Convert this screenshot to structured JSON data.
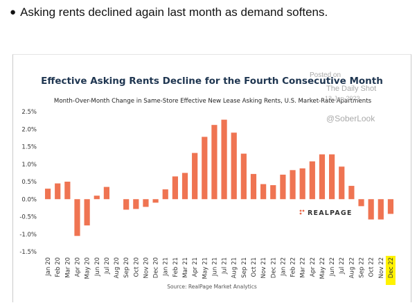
{
  "bullet": {
    "text": "Asking rents declined again last month as demand softens."
  },
  "watermarks": {
    "posted_on": "Posted on",
    "daily_shot": "The Daily Shot",
    "date": "13-Jan-2023",
    "handle": "@SoberLook"
  },
  "brand": {
    "name": "REALPAGE",
    "dots_color": "#e8684a"
  },
  "colors": {
    "bar": "#ef7452",
    "title": "#1e3550",
    "highlight": "#fff200"
  },
  "chart_data": {
    "type": "bar",
    "title": "Effective Asking Rents Decline for the Fourth Consecutive Month",
    "subtitle": "Month-Over-Month Change in Same-Store Effective New Lease Asking Rents, U.S. Market-Rate Apartments",
    "source": "Source: RealPage Market Analytics",
    "categories": [
      "Jan 20",
      "Feb 20",
      "Mar 20",
      "Apr 20",
      "May 20",
      "Jun 20",
      "Jul 20",
      "Aug 20",
      "Sep 20",
      "Oct 20",
      "Nov 20",
      "Dec 20",
      "Jan 21",
      "Feb 21",
      "Mar 21",
      "Apr 21",
      "May 21",
      "Jun 21",
      "Jul 21",
      "Aug 21",
      "Sep 21",
      "Oct 21",
      "Nov 21",
      "Dec 21",
      "Jan 22",
      "Feb 22",
      "Mar 22",
      "Apr 22",
      "May 22",
      "Jun 22",
      "Jul 22",
      "Aug 22",
      "Sep 22",
      "Oct 22",
      "Nov 22",
      "Dec 22"
    ],
    "values": [
      0.3,
      0.45,
      0.5,
      -1.05,
      -0.75,
      0.1,
      0.35,
      0.0,
      -0.3,
      -0.28,
      -0.22,
      -0.1,
      0.28,
      0.65,
      0.75,
      1.32,
      1.78,
      2.12,
      2.27,
      1.9,
      1.3,
      0.72,
      0.43,
      0.4,
      0.7,
      0.83,
      0.88,
      1.08,
      1.28,
      1.28,
      0.93,
      0.38,
      -0.2,
      -0.58,
      -0.58,
      -0.42
    ],
    "yticks": [
      "2.5%",
      "2.0%",
      "1.5%",
      "1.0%",
      "0.5%",
      "0.0%",
      "-0.5%",
      "-1.0%",
      "-1.5%"
    ],
    "ylim": [
      -1.5,
      2.5
    ],
    "highlighted_category": "Dec 22",
    "grid": false
  }
}
